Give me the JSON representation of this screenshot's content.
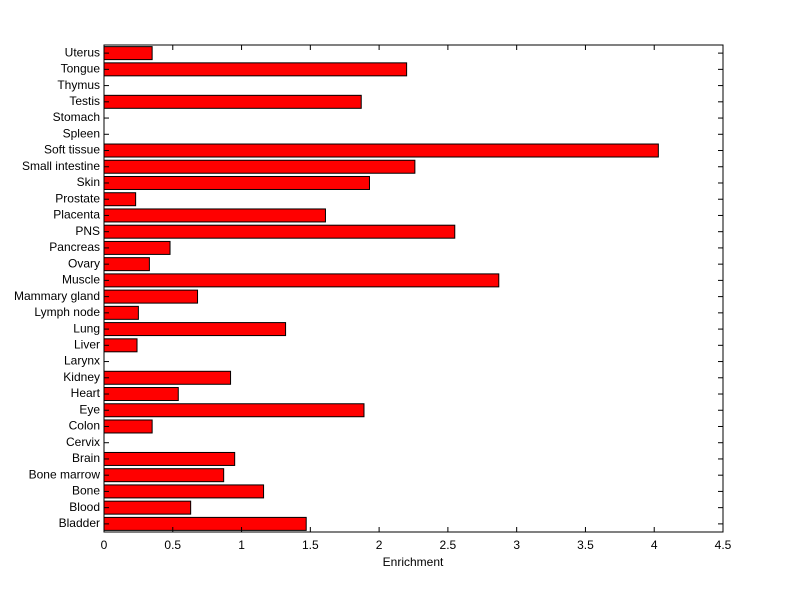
{
  "chart_data": {
    "type": "barh",
    "x_label": "Enrichment",
    "categories": [
      "Bladder",
      "Blood",
      "Bone",
      "Bone marrow",
      "Brain",
      "Cervix",
      "Colon",
      "Eye",
      "Heart",
      "Kidney",
      "Larynx",
      "Liver",
      "Lung",
      "Lymph node",
      "Mammary gland",
      "Muscle",
      "Ovary",
      "Pancreas",
      "PNS",
      "Placenta",
      "Prostate",
      "Skin",
      "Small intestine",
      "Soft tissue",
      "Spleen",
      "Stomach",
      "Testis",
      "Thymus",
      "Tongue",
      "Uterus"
    ],
    "values": [
      1.47,
      0.63,
      1.16,
      0.87,
      0.95,
      0,
      0.35,
      1.89,
      0.54,
      0.92,
      0,
      0.24,
      1.32,
      0.25,
      0.68,
      2.87,
      0.33,
      0.48,
      2.55,
      1.61,
      0.23,
      1.93,
      2.26,
      4.03,
      0,
      0,
      1.87,
      0,
      2.2,
      0.35
    ],
    "color": "#ff0000",
    "xlim": [
      0,
      4.5
    ],
    "xticks": [
      0,
      0.5,
      1,
      1.5,
      2,
      2.5,
      3,
      3.5,
      4,
      4.5
    ]
  }
}
